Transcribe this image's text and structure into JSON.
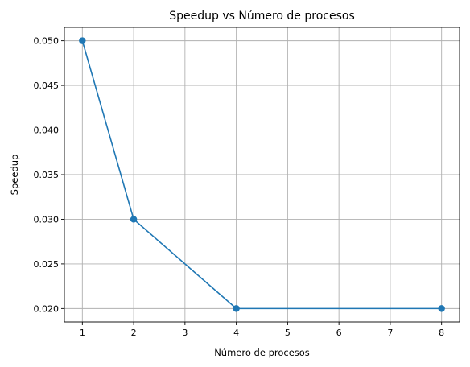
{
  "chart_data": {
    "type": "line",
    "title": "Speedup vs Número de procesos",
    "xlabel": "Número de procesos",
    "ylabel": "Speedup",
    "x": [
      1,
      2,
      4,
      8
    ],
    "series": [
      {
        "values": [
          0.05,
          0.03,
          0.02,
          0.02
        ]
      }
    ],
    "xlim": [
      0.65,
      8.35
    ],
    "ylim": [
      0.0185,
      0.0515
    ],
    "xticks": [
      1,
      2,
      3,
      4,
      5,
      6,
      7,
      8
    ],
    "yticks": [
      0.02,
      0.025,
      0.03,
      0.035,
      0.04,
      0.045,
      0.05
    ],
    "ytick_labels": [
      "0.020",
      "0.025",
      "0.030",
      "0.035",
      "0.040",
      "0.045",
      "0.050"
    ],
    "grid": true,
    "markers": true,
    "line_color": "#1f77b4"
  }
}
